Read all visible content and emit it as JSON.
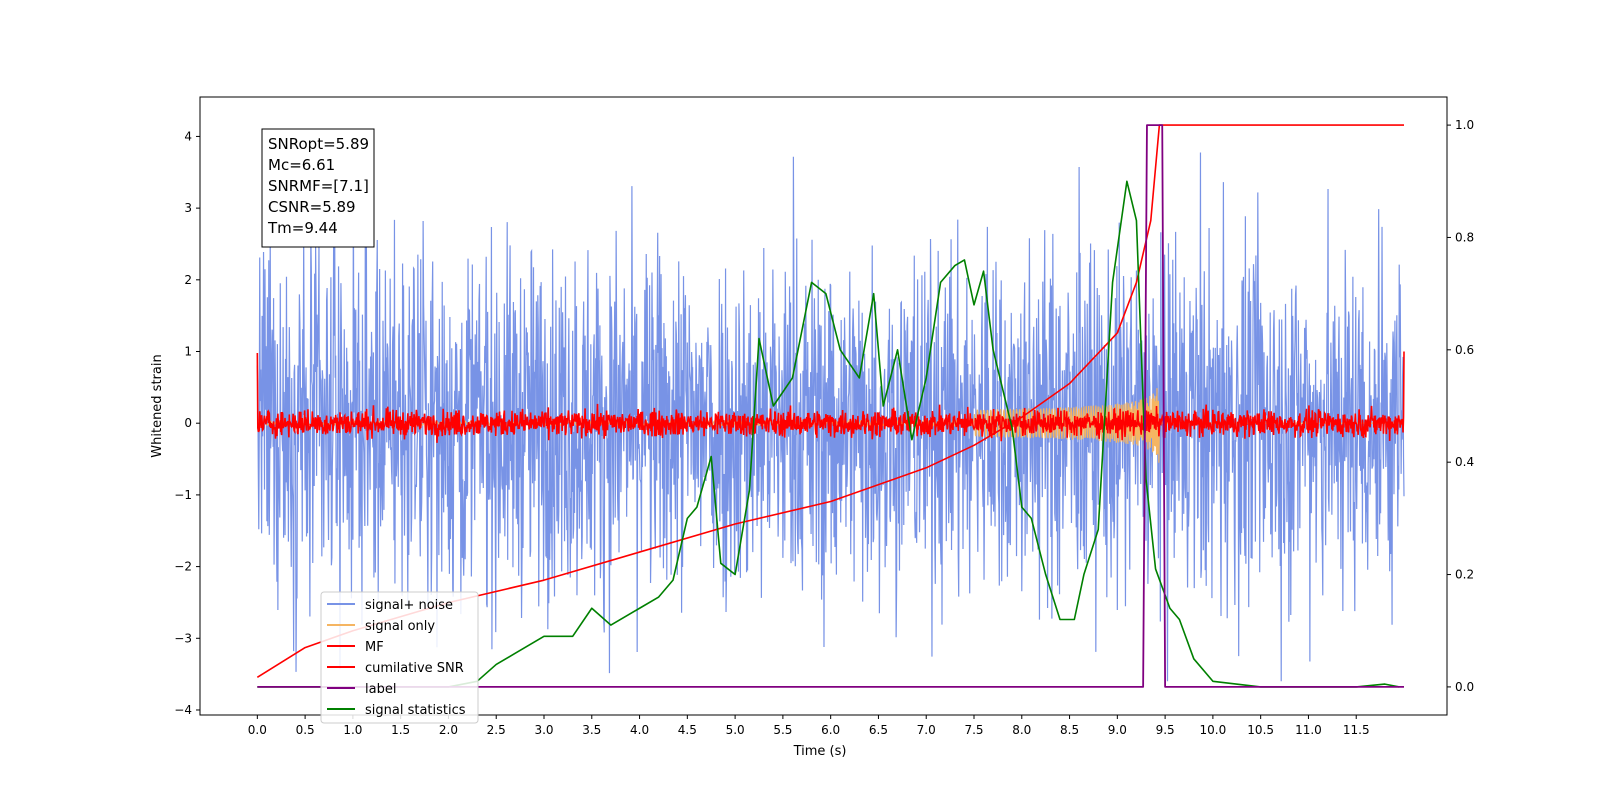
{
  "chart_data": {
    "type": "line",
    "xlabel": "Time (s)",
    "ylabel": "Whitened strain",
    "xlim": [
      -0.6,
      12.45
    ],
    "ylim_left": [
      -4.07,
      4.55
    ],
    "ylim_right": [
      -0.05,
      1.05
    ],
    "x_ticks": [
      "0.0",
      "0.5",
      "1.0",
      "1.5",
      "2.0",
      "2.5",
      "3.0",
      "3.5",
      "4.0",
      "4.5",
      "5.0",
      "5.5",
      "6.0",
      "6.5",
      "7.0",
      "7.5",
      "8.0",
      "8.5",
      "9.0",
      "9.5",
      "10.0",
      "10.5",
      "11.0",
      "11.5"
    ],
    "y_ticks_left": [
      "4",
      "3",
      "2",
      "1",
      "0",
      "−1",
      "−2",
      "−3",
      "−4"
    ],
    "y_ticks_right": [
      "1.0",
      "0.8",
      "0.6",
      "0.4",
      "0.2",
      "0.0"
    ],
    "legend_position": "lower-left",
    "info_box": [
      "SNRopt=5.89",
      "Mc=6.61",
      "SNRMF=[7.1]",
      "CSNR=5.89",
      "Tm=9.44"
    ],
    "series": [
      {
        "name": "signal+ noise",
        "color": "#7893e6",
        "axis": "left",
        "description": "noisy strain, envelope roughly ±2.2 with spikes to ±3.5",
        "envelope": 2.2
      },
      {
        "name": "signal only",
        "color": "#f5b562",
        "axis": "left",
        "description": "chirp growing in amplitude until merger near 9.44 s",
        "peak_t": 9.44,
        "peak_amp": 0.6
      },
      {
        "name": "MF",
        "color": "#ff0000",
        "axis": "left",
        "description": "matched filter output, band roughly ±0.2 around zero",
        "envelope": 0.18
      },
      {
        "name": "cumilative SNR",
        "color": "#ff0000",
        "axis": "right",
        "x": [
          0.0,
          0.5,
          1.0,
          2.0,
          3.0,
          4.0,
          5.0,
          6.0,
          7.0,
          7.5,
          8.0,
          8.5,
          9.0,
          9.2,
          9.35,
          9.44,
          12.0
        ],
        "y": [
          0.017,
          0.07,
          0.1,
          0.15,
          0.19,
          0.24,
          0.29,
          0.33,
          0.39,
          0.43,
          0.48,
          0.54,
          0.63,
          0.72,
          0.83,
          1.0,
          1.0
        ]
      },
      {
        "name": "label",
        "color": "#800080",
        "axis": "right",
        "x": [
          0.0,
          9.27,
          9.31,
          9.47,
          9.5,
          12.0
        ],
        "y": [
          0.0,
          0.0,
          1.0,
          1.0,
          0.0,
          0.0
        ]
      },
      {
        "name": "signal statistics",
        "color": "#008000",
        "axis": "right",
        "x": [
          0.0,
          0.5,
          1.0,
          1.5,
          2.0,
          2.3,
          2.5,
          2.7,
          3.0,
          3.3,
          3.5,
          3.7,
          4.0,
          4.2,
          4.35,
          4.5,
          4.6,
          4.75,
          4.85,
          5.0,
          5.15,
          5.25,
          5.4,
          5.6,
          5.8,
          5.95,
          6.1,
          6.3,
          6.45,
          6.55,
          6.7,
          6.85,
          7.0,
          7.15,
          7.3,
          7.4,
          7.5,
          7.6,
          7.7,
          7.9,
          8.0,
          8.1,
          8.25,
          8.4,
          8.55,
          8.65,
          8.8,
          8.95,
          9.1,
          9.2,
          9.3,
          9.4,
          9.55,
          9.65,
          9.8,
          10.0,
          10.5,
          11.0,
          11.5,
          11.8,
          11.95
        ],
        "y": [
          0.0,
          0.0,
          0.0,
          0.0,
          0.0,
          0.01,
          0.04,
          0.06,
          0.09,
          0.09,
          0.14,
          0.11,
          0.14,
          0.16,
          0.19,
          0.3,
          0.32,
          0.41,
          0.22,
          0.2,
          0.35,
          0.62,
          0.5,
          0.55,
          0.72,
          0.7,
          0.6,
          0.55,
          0.7,
          0.5,
          0.6,
          0.44,
          0.55,
          0.72,
          0.75,
          0.76,
          0.68,
          0.74,
          0.6,
          0.46,
          0.32,
          0.3,
          0.2,
          0.12,
          0.12,
          0.2,
          0.28,
          0.72,
          0.9,
          0.83,
          0.37,
          0.21,
          0.14,
          0.12,
          0.05,
          0.01,
          0.0,
          0.0,
          0.0,
          0.005,
          0.0
        ]
      }
    ]
  }
}
